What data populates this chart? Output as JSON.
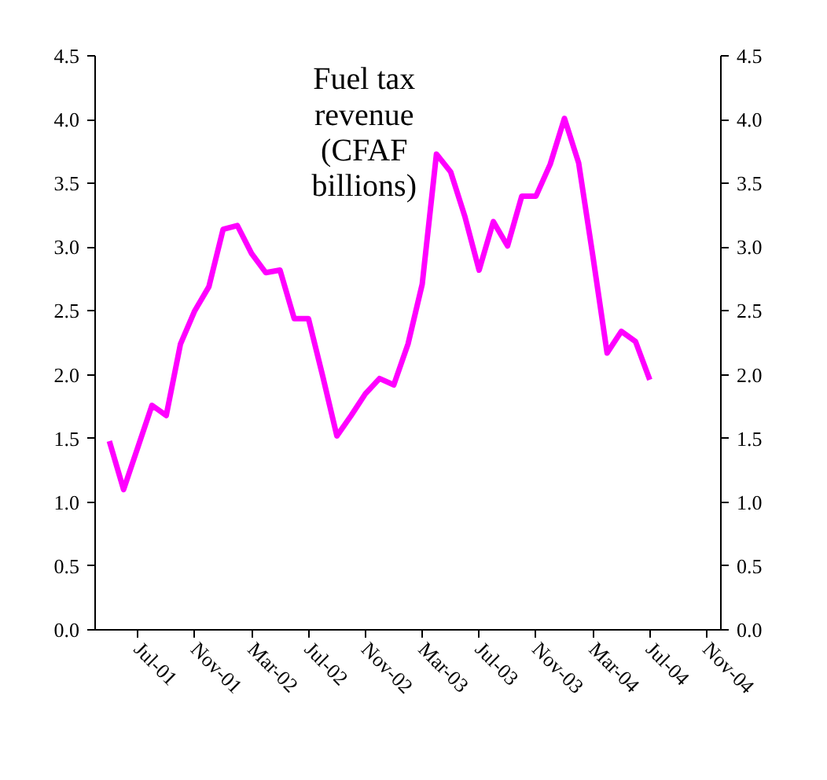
{
  "chart_data": {
    "type": "line",
    "title": "Fuel tax revenue (CFAF billions)",
    "x": [
      "2001-05",
      "2001-06",
      "2001-07",
      "2001-08",
      "2001-09",
      "2001-10",
      "2001-11",
      "2001-12",
      "2002-01",
      "2002-02",
      "2002-03",
      "2002-04",
      "2002-05",
      "2002-06",
      "2002-07",
      "2002-08",
      "2002-09",
      "2002-10",
      "2002-11",
      "2002-12",
      "2003-01",
      "2003-02",
      "2003-03",
      "2003-04",
      "2003-05",
      "2003-06",
      "2003-07",
      "2003-08",
      "2003-09",
      "2003-10",
      "2003-11",
      "2003-12",
      "2004-01",
      "2004-02",
      "2004-03",
      "2004-04",
      "2004-05",
      "2004-06",
      "2004-07"
    ],
    "series": [
      {
        "color": "#ff00ff",
        "values": [
          1.48,
          1.1,
          1.43,
          1.76,
          1.68,
          2.24,
          2.5,
          2.69,
          3.14,
          3.17,
          2.95,
          2.8,
          2.82,
          2.44,
          2.44,
          1.99,
          1.52,
          1.68,
          1.85,
          1.97,
          1.92,
          2.24,
          2.71,
          3.73,
          3.59,
          3.24,
          2.82,
          3.2,
          3.01,
          3.4,
          3.4,
          3.65,
          4.01,
          3.66,
          2.93,
          2.17,
          2.34,
          2.26,
          1.96
        ]
      }
    ],
    "xlim": [
      "2001-04",
      "2004-12"
    ],
    "xticks": [
      {
        "value": "2001-07",
        "label": "Jul-01"
      },
      {
        "value": "2001-11",
        "label": "Nov-01"
      },
      {
        "value": "2002-03",
        "label": "Mar-02"
      },
      {
        "value": "2002-07",
        "label": "Jul-02"
      },
      {
        "value": "2002-11",
        "label": "Nov-02"
      },
      {
        "value": "2003-03",
        "label": "Mar-03"
      },
      {
        "value": "2003-07",
        "label": "Jul-03"
      },
      {
        "value": "2003-11",
        "label": "Nov-03"
      },
      {
        "value": "2004-03",
        "label": "Mar-04"
      },
      {
        "value": "2004-07",
        "label": "Jul-04"
      },
      {
        "value": "2004-11",
        "label": "Nov-04"
      }
    ],
    "ylim": [
      0,
      4.5
    ],
    "yticks": [
      {
        "value": 0,
        "label": "0.0"
      },
      {
        "value": 0.5,
        "label": "0.5"
      },
      {
        "value": 1,
        "label": "1.0"
      },
      {
        "value": 1.5,
        "label": "1.5"
      },
      {
        "value": 2,
        "label": "2.0"
      },
      {
        "value": 2.5,
        "label": "2.5"
      },
      {
        "value": 3,
        "label": "3.0"
      },
      {
        "value": 3.5,
        "label": "3.5"
      },
      {
        "value": 4,
        "label": "4.0"
      },
      {
        "value": 4.5,
        "label": "4.5"
      }
    ],
    "y2lim": [
      0,
      4.5
    ],
    "y2ticks": [
      {
        "value": 0,
        "label": "0.0"
      },
      {
        "value": 0.5,
        "label": "0.5"
      },
      {
        "value": 1,
        "label": "1.0"
      },
      {
        "value": 1.5,
        "label": "1.5"
      },
      {
        "value": 2,
        "label": "2.0"
      },
      {
        "value": 2.5,
        "label": "2.5"
      },
      {
        "value": 3,
        "label": "3.0"
      },
      {
        "value": 3.5,
        "label": "3.5"
      },
      {
        "value": 4,
        "label": "4.0"
      },
      {
        "value": 4.5,
        "label": "4.5"
      }
    ],
    "grid": false,
    "marker": "none",
    "line_style": "solid"
  }
}
